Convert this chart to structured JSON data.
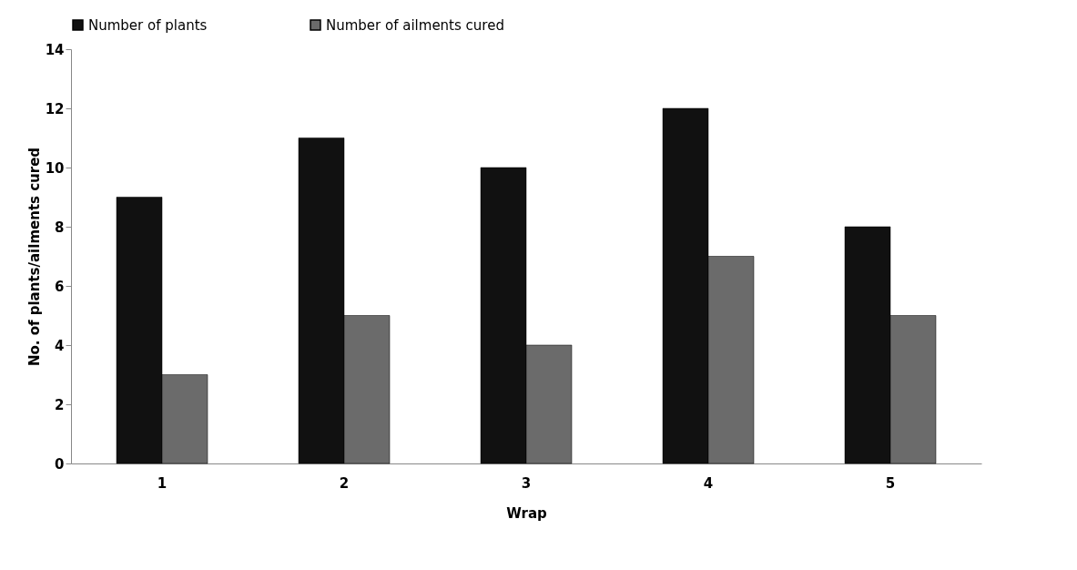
{
  "chart_data": {
    "type": "bar",
    "xlabel": "Wrap",
    "ylabel": "No. of plants/ailments cured",
    "categories": [
      "1",
      "2",
      "3",
      "4",
      "5"
    ],
    "series": [
      {
        "name": "Number of plants",
        "color": "#111111",
        "values": [
          9,
          11,
          10,
          12,
          8
        ]
      },
      {
        "name": "Number of ailments cured",
        "color": "#6b6b6b",
        "values": [
          3,
          5,
          4,
          7,
          5
        ]
      }
    ],
    "ylim": [
      0,
      14
    ],
    "yticks": [
      0,
      2,
      4,
      6,
      8,
      10,
      12,
      14
    ],
    "grid": false,
    "legend": "top"
  }
}
